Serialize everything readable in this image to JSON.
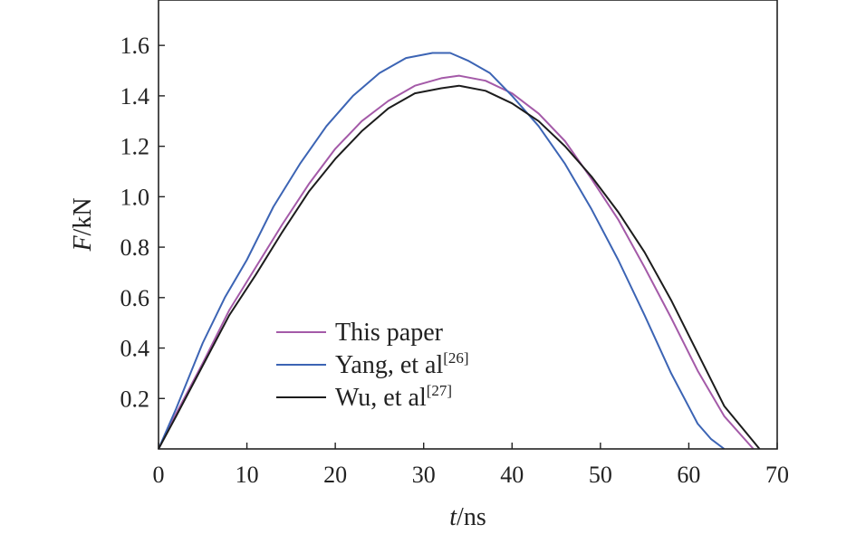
{
  "chart_data": {
    "type": "line",
    "xlabel": {
      "var": "t",
      "unit": "/ns"
    },
    "ylabel": {
      "var": "F",
      "unit": "/kN"
    },
    "xlim": [
      0,
      70
    ],
    "ylim": [
      0,
      1.78
    ],
    "xticks": [
      0,
      10,
      20,
      30,
      40,
      50,
      60,
      70
    ],
    "yticks": [
      0.2,
      0.4,
      0.6,
      0.8,
      1.0,
      1.2,
      1.4,
      1.6
    ],
    "xtick_labels": [
      "0",
      "10",
      "20",
      "30",
      "40",
      "50",
      "60",
      "70"
    ],
    "ytick_labels": [
      "0.2",
      "0.4",
      "0.6",
      "0.8",
      "1.0",
      "1.2",
      "1.4",
      "1.6"
    ],
    "legend_position": "lower-left",
    "grid": false,
    "series": [
      {
        "name": "This paper",
        "sup": "",
        "color": "#a45aa8",
        "x": [
          0,
          2,
          5,
          8,
          11,
          14,
          17,
          20,
          23,
          26,
          29,
          32,
          34,
          37,
          40,
          43,
          46,
          49,
          52,
          55,
          58,
          61,
          64,
          67.3
        ],
        "y": [
          0,
          0.14,
          0.34,
          0.55,
          0.72,
          0.89,
          1.05,
          1.19,
          1.3,
          1.38,
          1.44,
          1.47,
          1.48,
          1.46,
          1.41,
          1.33,
          1.22,
          1.07,
          0.91,
          0.72,
          0.52,
          0.31,
          0.13,
          0
        ]
      },
      {
        "name": "Yang, et al",
        "sup": "[26]",
        "color": "#3c64b4",
        "x": [
          0,
          2,
          5,
          7.5,
          10,
          13,
          16,
          19,
          22,
          25,
          28,
          31,
          33,
          35,
          37.5,
          40,
          43,
          46,
          49,
          52,
          55,
          58,
          61,
          62.5,
          64
        ],
        "y": [
          0,
          0.16,
          0.42,
          0.6,
          0.75,
          0.96,
          1.13,
          1.28,
          1.4,
          1.49,
          1.55,
          1.57,
          1.57,
          1.54,
          1.49,
          1.4,
          1.28,
          1.13,
          0.95,
          0.75,
          0.53,
          0.3,
          0.1,
          0.04,
          0
        ]
      },
      {
        "name": "Wu, et al",
        "sup": "[27]",
        "color": "#1c1c1c",
        "x": [
          0,
          2,
          5,
          8,
          11,
          14,
          17,
          20,
          23,
          26,
          29,
          32,
          34,
          37,
          40,
          43,
          46,
          49,
          52,
          55,
          58,
          61,
          64,
          68
        ],
        "y": [
          0,
          0.13,
          0.33,
          0.53,
          0.69,
          0.86,
          1.02,
          1.15,
          1.26,
          1.35,
          1.41,
          1.43,
          1.44,
          1.42,
          1.37,
          1.3,
          1.2,
          1.08,
          0.94,
          0.78,
          0.59,
          0.38,
          0.17,
          0
        ]
      }
    ]
  }
}
